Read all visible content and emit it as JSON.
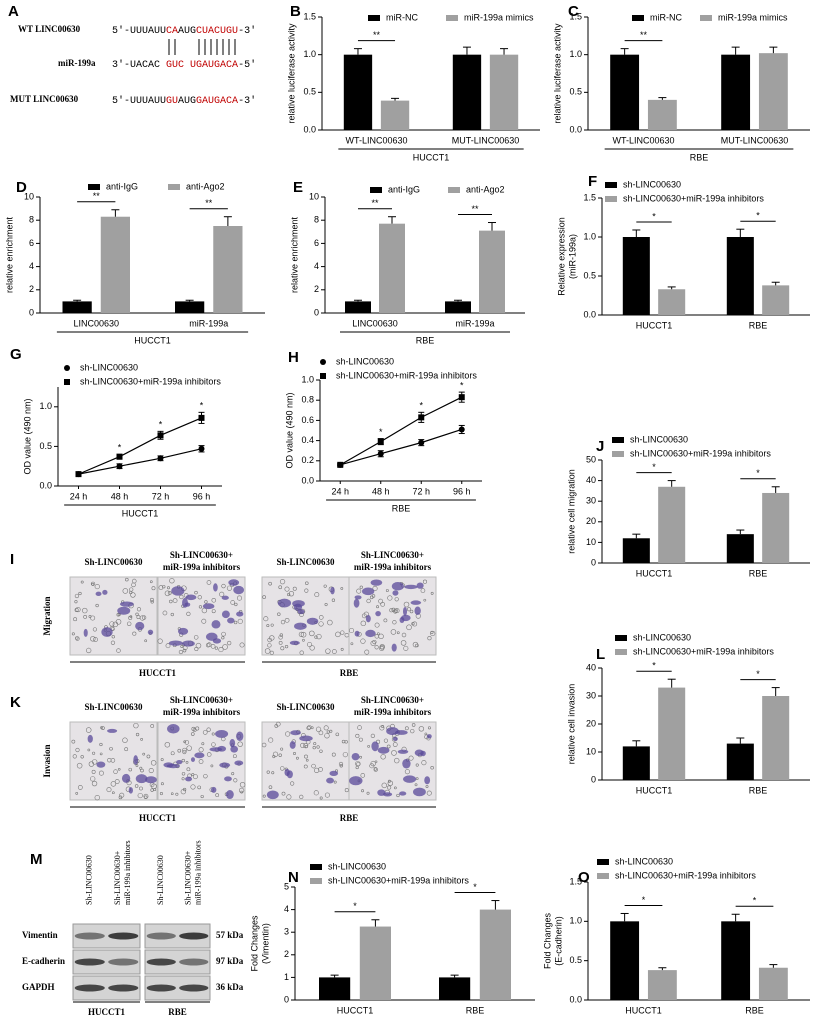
{
  "chart_data": [
    {
      "type": "sequence",
      "label": "A",
      "rows": [
        {
          "name": "WT LINC00630",
          "parts": [
            {
              "text": "5'-UUUAUU",
              "color": "#000000"
            },
            {
              "text": "CA",
              "color": "#c00000"
            },
            {
              "text": "AUG",
              "color": "#000000"
            },
            {
              "text": "CUACUGU",
              "color": "#c00000"
            },
            {
              "text": "-3'",
              "color": "#000000"
            }
          ]
        },
        {
          "name": "miR-199a",
          "parts": [
            {
              "text": "3'-UACAC ",
              "color": "#000000"
            },
            {
              "text": "GUC",
              "color": "#c00000"
            },
            {
              "text": " ",
              "color": "#000000"
            },
            {
              "text": "UGAUGACA",
              "color": "#c00000"
            },
            {
              "text": "-5'",
              "color": "#000000"
            }
          ]
        },
        {
          "name": "MUT LINC00630",
          "parts": [
            {
              "text": "5'-UUUAUU",
              "color": "#000000"
            },
            {
              "text": "GU",
              "color": "#c00000"
            },
            {
              "text": "AUG",
              "color": "#000000"
            },
            {
              "text": "GAUGACA",
              "color": "#c00000"
            },
            {
              "text": "-3'",
              "color": "#000000"
            }
          ]
        }
      ]
    },
    {
      "type": "bar",
      "label": "B",
      "ylabel": "relative luciferase activity",
      "group_label": "HUCCT1",
      "categories": [
        "WT-LINC00630",
        "MUT-LINC00630"
      ],
      "series": [
        {
          "name": "miR-NC",
          "color": "#000000",
          "values": [
            1.0,
            1.0
          ],
          "errors": [
            0.08,
            0.1
          ]
        },
        {
          "name": "miR-199a mimics",
          "color": "#a0a0a0",
          "values": [
            0.39,
            1.0
          ],
          "errors": [
            0.03,
            0.08
          ]
        }
      ],
      "significance": [
        "**",
        null
      ],
      "legend_orientation": "horizontal",
      "ylim": [
        0,
        1.5
      ],
      "yticks": [
        {
          "value": 0,
          "label": "0.0"
        },
        {
          "value": 0.5,
          "label": "0.5"
        },
        {
          "value": 1,
          "label": "1.0"
        },
        {
          "value": 1.5,
          "label": "1.5"
        }
      ]
    },
    {
      "type": "bar",
      "label": "C",
      "ylabel": "relative luciferase activity",
      "group_label": "RBE",
      "categories": [
        "WT-LINC00630",
        "MUT-LINC00630"
      ],
      "series": [
        {
          "name": "miR-NC",
          "color": "#000000",
          "values": [
            1.0,
            1.0
          ],
          "errors": [
            0.08,
            0.1
          ]
        },
        {
          "name": "miR-199a mimics",
          "color": "#a0a0a0",
          "values": [
            0.4,
            1.02
          ],
          "errors": [
            0.03,
            0.08
          ]
        }
      ],
      "significance": [
        "**",
        null
      ],
      "legend_orientation": "horizontal",
      "ylim": [
        0,
        1.5
      ],
      "yticks": [
        {
          "value": 0,
          "label": "0.0"
        },
        {
          "value": 0.5,
          "label": "0.5"
        },
        {
          "value": 1,
          "label": "1.0"
        },
        {
          "value": 1.5,
          "label": "1.5"
        }
      ]
    },
    {
      "type": "bar",
      "label": "D",
      "ylabel": "relative enrichment",
      "group_label": "HUCCT1",
      "categories": [
        "LINC00630",
        "miR-199a"
      ],
      "series": [
        {
          "name": "anti-IgG",
          "color": "#000000",
          "values": [
            1.0,
            1.0
          ],
          "errors": [
            0.1,
            0.1
          ]
        },
        {
          "name": "anti-Ago2",
          "color": "#a0a0a0",
          "values": [
            8.3,
            7.5
          ],
          "errors": [
            0.6,
            0.8
          ]
        }
      ],
      "significance": [
        "**",
        "**"
      ],
      "legend_orientation": "horizontal",
      "ylim": [
        0,
        10
      ],
      "yticks": [
        0,
        2,
        4,
        6,
        8,
        10
      ]
    },
    {
      "type": "bar",
      "label": "E",
      "ylabel": "relative enrichment",
      "group_label": "RBE",
      "categories": [
        "LINC00630",
        "miR-199a"
      ],
      "series": [
        {
          "name": "anti-IgG",
          "color": "#000000",
          "values": [
            1.0,
            1.0
          ],
          "errors": [
            0.1,
            0.1
          ]
        },
        {
          "name": "anti-Ago2",
          "color": "#a0a0a0",
          "values": [
            7.7,
            7.1
          ],
          "errors": [
            0.6,
            0.7
          ]
        }
      ],
      "significance": [
        "**",
        "**"
      ],
      "legend_orientation": "horizontal",
      "ylim": [
        0,
        10
      ],
      "yticks": [
        0,
        2,
        4,
        6,
        8,
        10
      ]
    },
    {
      "type": "bar",
      "label": "F",
      "ylabel": [
        "Relative expression",
        "(miR-199a)"
      ],
      "categories": [
        "HUCCT1",
        "RBE"
      ],
      "series": [
        {
          "name": "sh-LINC00630",
          "color": "#000000",
          "values": [
            1.0,
            1.0
          ],
          "errors": [
            0.09,
            0.1
          ]
        },
        {
          "name": "sh-LINC00630+miR-199a inhibitors",
          "color": "#a0a0a0",
          "values": [
            0.33,
            0.38
          ],
          "errors": [
            0.03,
            0.04
          ]
        }
      ],
      "significance": [
        "*",
        "*"
      ],
      "legend_orientation": "vertical",
      "ylim": [
        0,
        1.5
      ],
      "yticks": [
        {
          "value": 0,
          "label": "0.0"
        },
        {
          "value": 0.5,
          "label": "0.5"
        },
        {
          "value": 1,
          "label": "1.0"
        },
        {
          "value": 1.5,
          "label": "1.5"
        }
      ]
    },
    {
      "type": "line",
      "label": "G",
      "ylabel": "OD value (490 nm)",
      "group_label": "HUCCT1",
      "categories": [
        "24 h",
        "48 h",
        "72 h",
        "96 h"
      ],
      "series": [
        {
          "name": "sh-LINC00630",
          "color": "#000000",
          "marker": "circle",
          "values": [
            0.15,
            0.25,
            0.35,
            0.47
          ],
          "errors": [
            0.01,
            0.03,
            0.03,
            0.04
          ]
        },
        {
          "name": "sh-LINC00630+miR-199a inhibitors",
          "color": "#000000",
          "marker": "square",
          "values": [
            0.15,
            0.37,
            0.64,
            0.86
          ],
          "errors": [
            0.01,
            0.03,
            0.05,
            0.07
          ]
        }
      ],
      "significance": [
        null,
        "*",
        "*",
        "*"
      ],
      "legend_orientation": "vertical",
      "ylim": [
        0,
        1.25
      ],
      "yticks": [
        {
          "value": 0,
          "label": "0.0"
        },
        {
          "value": 0.5,
          "label": "0.5"
        },
        {
          "value": 1,
          "label": "1.0"
        }
      ]
    },
    {
      "type": "line",
      "label": "H",
      "ylabel": "OD value (490 nm)",
      "group_label": "RBE",
      "categories": [
        "24 h",
        "48 h",
        "72 h",
        "96 h"
      ],
      "series": [
        {
          "name": "sh-LINC00630",
          "color": "#000000",
          "marker": "circle",
          "values": [
            0.16,
            0.27,
            0.38,
            0.51
          ],
          "errors": [
            0.01,
            0.03,
            0.03,
            0.04
          ]
        },
        {
          "name": "sh-LINC00630+miR-199a inhibitors",
          "color": "#000000",
          "marker": "square",
          "values": [
            0.16,
            0.39,
            0.63,
            0.83
          ],
          "errors": [
            0.01,
            0.03,
            0.05,
            0.05
          ]
        }
      ],
      "significance": [
        null,
        "*",
        "*",
        "*"
      ],
      "legend_orientation": "vertical",
      "ylim": [
        0,
        1.0
      ],
      "yticks": [
        {
          "value": 0,
          "label": "0.0"
        },
        {
          "value": 0.2,
          "label": "0.2"
        },
        {
          "value": 0.4,
          "label": "0.4"
        },
        {
          "value": 0.6,
          "label": "0.6"
        },
        {
          "value": 0.8,
          "label": "0.8"
        },
        {
          "value": 1,
          "label": "1.0"
        }
      ]
    },
    {
      "type": "image",
      "label": "I",
      "row_label": "Migration",
      "headers": [
        {
          "lines": [
            "Sh-LINC00630"
          ]
        },
        {
          "lines": [
            "Sh-LINC00630+",
            "miR-199a inhibitors"
          ]
        }
      ],
      "groups": [
        "HUCCT1",
        "RBE"
      ]
    },
    {
      "type": "bar",
      "label": "J",
      "ylabel": "relative cell migration",
      "categories": [
        "HUCCT1",
        "RBE"
      ],
      "series": [
        {
          "name": "sh-LINC00630",
          "color": "#000000",
          "values": [
            12,
            14
          ],
          "errors": [
            2,
            2
          ]
        },
        {
          "name": "sh-LINC00630+miR-199a inhibitors",
          "color": "#a0a0a0",
          "values": [
            37,
            34
          ],
          "errors": [
            3,
            3
          ]
        }
      ],
      "significance": [
        "*",
        "*"
      ],
      "legend_orientation": "vertical",
      "ylim": [
        0,
        50
      ],
      "yticks": [
        0,
        10,
        20,
        30,
        40,
        50
      ]
    },
    {
      "type": "image",
      "label": "K",
      "row_label": "Invasion",
      "headers": [
        {
          "lines": [
            "Sh-LINC00630"
          ]
        },
        {
          "lines": [
            "Sh-LINC00630+",
            "miR-199a inhibitors"
          ]
        }
      ],
      "groups": [
        "HUCCT1",
        "RBE"
      ]
    },
    {
      "type": "bar",
      "label": "L",
      "ylabel": "relative cell invasion",
      "categories": [
        "HUCCT1",
        "RBE"
      ],
      "series": [
        {
          "name": "sh-LINC00630",
          "color": "#000000",
          "values": [
            12,
            13
          ],
          "errors": [
            2,
            2
          ]
        },
        {
          "name": "sh-LINC00630+miR-199a inhibitors",
          "color": "#a0a0a0",
          "values": [
            33,
            30
          ],
          "errors": [
            3,
            3
          ]
        }
      ],
      "significance": [
        "*",
        "*"
      ],
      "legend_orientation": "vertical",
      "ylim": [
        0,
        40
      ],
      "yticks": [
        0,
        10,
        20,
        30,
        40
      ]
    },
    {
      "type": "blot",
      "label": "M",
      "lanes": [
        {
          "lines": [
            "Sh-LINC00630"
          ]
        },
        {
          "lines": [
            "Sh-LINC00630+",
            "miR-199a inhibitors"
          ]
        }
      ],
      "rows": [
        "Vimentin",
        "E-cadherin",
        "GAPDH"
      ],
      "sizes": [
        "57 kDa",
        "97 kDa",
        "36 kDa"
      ],
      "groups": [
        "HUCCT1",
        "RBE"
      ]
    },
    {
      "type": "bar",
      "label": "N",
      "ylabel": [
        "Fold Changes",
        "(Vimentin)"
      ],
      "categories": [
        "HUCCT1",
        "RBE"
      ],
      "series": [
        {
          "name": "sh-LINC00630",
          "color": "#000000",
          "values": [
            1.0,
            1.0
          ],
          "errors": [
            0.1,
            0.1
          ]
        },
        {
          "name": "sh-LINC00630+miR-199a inhibitors",
          "color": "#a0a0a0",
          "values": [
            3.25,
            4.0
          ],
          "errors": [
            0.3,
            0.4
          ]
        }
      ],
      "significance": [
        "*",
        "*"
      ],
      "legend_orientation": "vertical",
      "ylim": [
        0,
        5
      ],
      "yticks": [
        0,
        1,
        2,
        3,
        4,
        5
      ]
    },
    {
      "type": "bar",
      "label": "O",
      "ylabel": [
        "Fold Changes",
        "(E-cadherin)"
      ],
      "categories": [
        "HUCCT1",
        "RBE"
      ],
      "series": [
        {
          "name": "sh-LINC00630",
          "color": "#000000",
          "values": [
            1.0,
            1.0
          ],
          "errors": [
            0.1,
            0.09
          ]
        },
        {
          "name": "sh-LINC00630+miR-199a inhibitors",
          "color": "#a0a0a0",
          "values": [
            0.38,
            0.41
          ],
          "errors": [
            0.03,
            0.04
          ]
        }
      ],
      "significance": [
        "*",
        "*"
      ],
      "legend_orientation": "vertical",
      "ylim": [
        0,
        1.5
      ],
      "yticks": [
        {
          "value": 0,
          "label": "0.0"
        },
        {
          "value": 0.5,
          "label": "0.5"
        },
        {
          "value": 1,
          "label": "1.0"
        },
        {
          "value": 1.5,
          "label": "1.5"
        }
      ]
    }
  ]
}
